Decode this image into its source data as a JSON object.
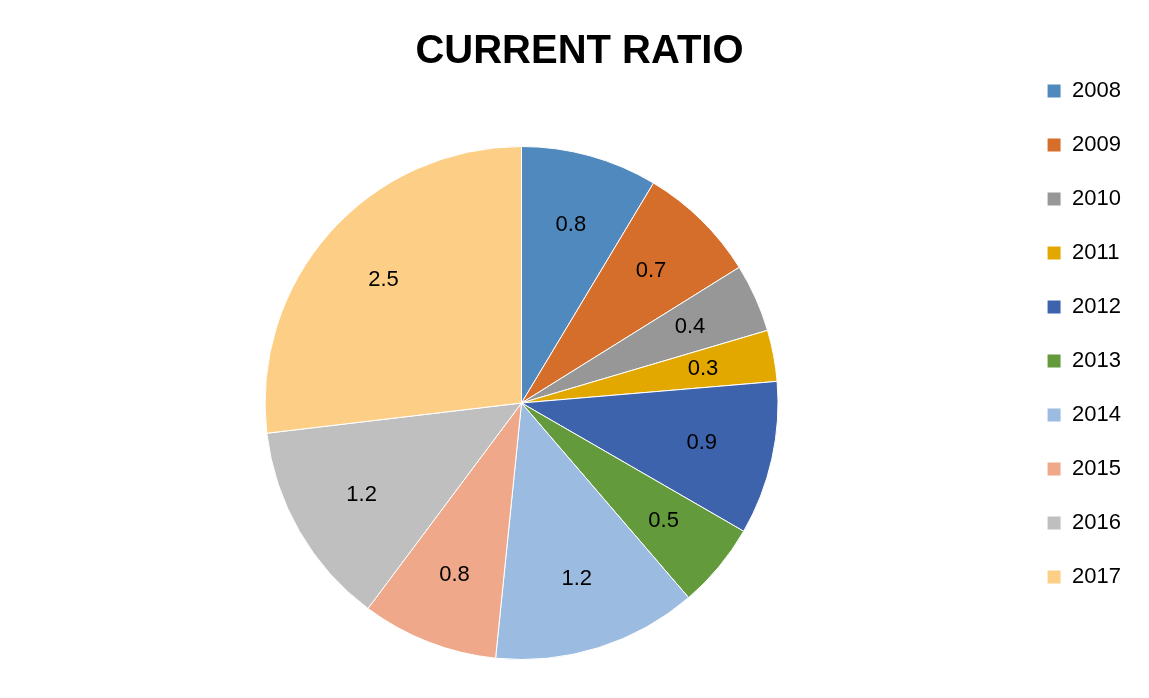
{
  "chart_data": {
    "type": "pie",
    "title": "CURRENT RATIO",
    "categories": [
      "2008",
      "2009",
      "2010",
      "2011",
      "2012",
      "2013",
      "2014",
      "2015",
      "2016",
      "2017"
    ],
    "values": [
      0.8,
      0.7,
      0.4,
      0.3,
      0.9,
      0.5,
      1.2,
      0.8,
      1.2,
      2.5
    ],
    "colors": [
      "#4f89bd",
      "#d46e2a",
      "#979797",
      "#e2a800",
      "#3d63ad",
      "#629a3c",
      "#9bbbe0",
      "#efa88a",
      "#bfbfbf",
      "#fdcf86"
    ],
    "data_labels": true,
    "legend": "right"
  }
}
